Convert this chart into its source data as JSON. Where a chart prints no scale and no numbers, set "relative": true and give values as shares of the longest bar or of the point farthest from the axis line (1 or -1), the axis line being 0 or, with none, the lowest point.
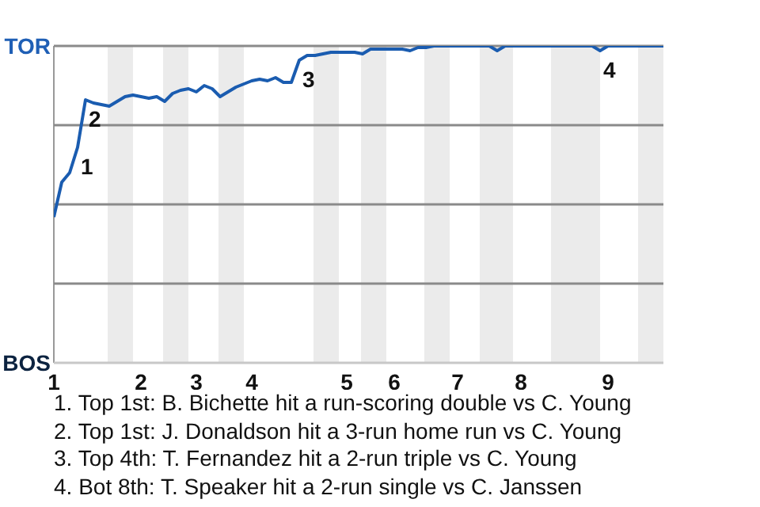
{
  "chart_data": {
    "type": "line",
    "relative": true,
    "marker": "none",
    "categories": [
      "1",
      null,
      null,
      null,
      null,
      null,
      null,
      null,
      null,
      null,
      null,
      "2",
      null,
      null,
      null,
      null,
      null,
      null,
      "3",
      null,
      null,
      null,
      null,
      null,
      null,
      "4",
      null,
      null,
      null,
      null,
      null,
      null,
      null,
      null,
      null,
      null,
      null,
      "5",
      null,
      null,
      null,
      null,
      null,
      "6",
      null,
      null,
      null,
      null,
      null,
      null,
      null,
      "7",
      null,
      null,
      null,
      null,
      null,
      null,
      null,
      "8",
      null,
      null,
      null,
      null,
      null,
      null,
      null,
      null,
      null,
      null,
      "9",
      null,
      null,
      null,
      null,
      null,
      null,
      null
    ],
    "series": [
      {
        "color": "#1a5cb0",
        "values": [
          0.46,
          0.57,
          0.6,
          0.68,
          0.83,
          0.82,
          0.815,
          0.81,
          0.825,
          0.84,
          0.845,
          0.84,
          0.835,
          0.84,
          0.825,
          0.85,
          0.86,
          0.865,
          0.855,
          0.875,
          0.865,
          0.84,
          0.855,
          0.87,
          0.88,
          0.89,
          0.895,
          0.89,
          0.9,
          0.885,
          0.885,
          0.955,
          0.97,
          0.97,
          0.975,
          0.98,
          0.98,
          0.98,
          0.98,
          0.975,
          0.99,
          0.99,
          0.99,
          0.99,
          0.99,
          0.985,
          0.995,
          0.995,
          1,
          1,
          1,
          1,
          1,
          1,
          1,
          1,
          0.985,
          1,
          1,
          1,
          1,
          1,
          1,
          1,
          1,
          1,
          1,
          1,
          1,
          0.985,
          1,
          1,
          1,
          1,
          1,
          1,
          1,
          1
        ],
        "name": null
      }
    ],
    "ref_lines": [
      {
        "axis": "y",
        "value": 1,
        "label": "TOR",
        "color": "#8a8a8a"
      },
      {
        "axis": "y",
        "value": 0.75,
        "color": "#8a8a8a"
      },
      {
        "axis": "y",
        "value": 0.5,
        "color": "#8a8a8a"
      },
      {
        "axis": "y",
        "value": 0.25,
        "color": "#8a8a8a"
      }
    ],
    "annotations": [
      "BOS",
      {
        "text": "1",
        "y": 0.68
      },
      {
        "text": "2",
        "y": 0.83
      },
      {
        "text": "3",
        "y": 0.955
      },
      {
        "text": "4",
        "y": 0.985
      },
      "1. Top 1st: B. Bichette hit a run-scoring double vs C. Young",
      "2. Top 1st: J. Donaldson hit a 3-run home run vs C. Young",
      "3. Top 4th: T. Fernandez hit a 2-run triple vs C. Young",
      "4. Bot 8th: T. Speaker hit a 2-run single vs C. Janssen"
    ]
  }
}
